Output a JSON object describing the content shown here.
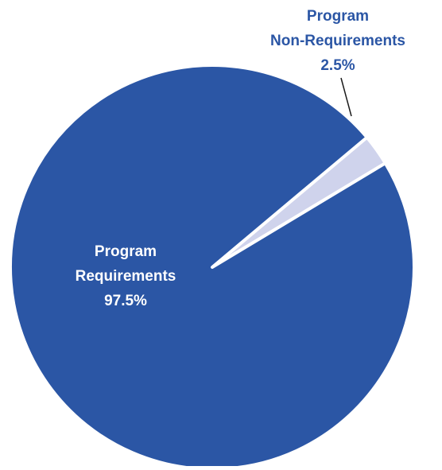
{
  "chart_data": {
    "type": "pie",
    "slices": [
      {
        "label_lines": [
          "Program",
          "Requirements"
        ],
        "value": 97.5,
        "value_label": "97.5%",
        "color": "#2b56a5"
      },
      {
        "label_lines": [
          "Program",
          "Non-Requirements"
        ],
        "value": 2.5,
        "value_label": "2.5%",
        "color": "#cfd3ec"
      }
    ],
    "colors": {
      "inside_label": "#ffffff",
      "outside_label": "#2b56a5",
      "separator": "#ffffff",
      "leader_line": "#1a1a1a"
    },
    "legend": "none"
  }
}
